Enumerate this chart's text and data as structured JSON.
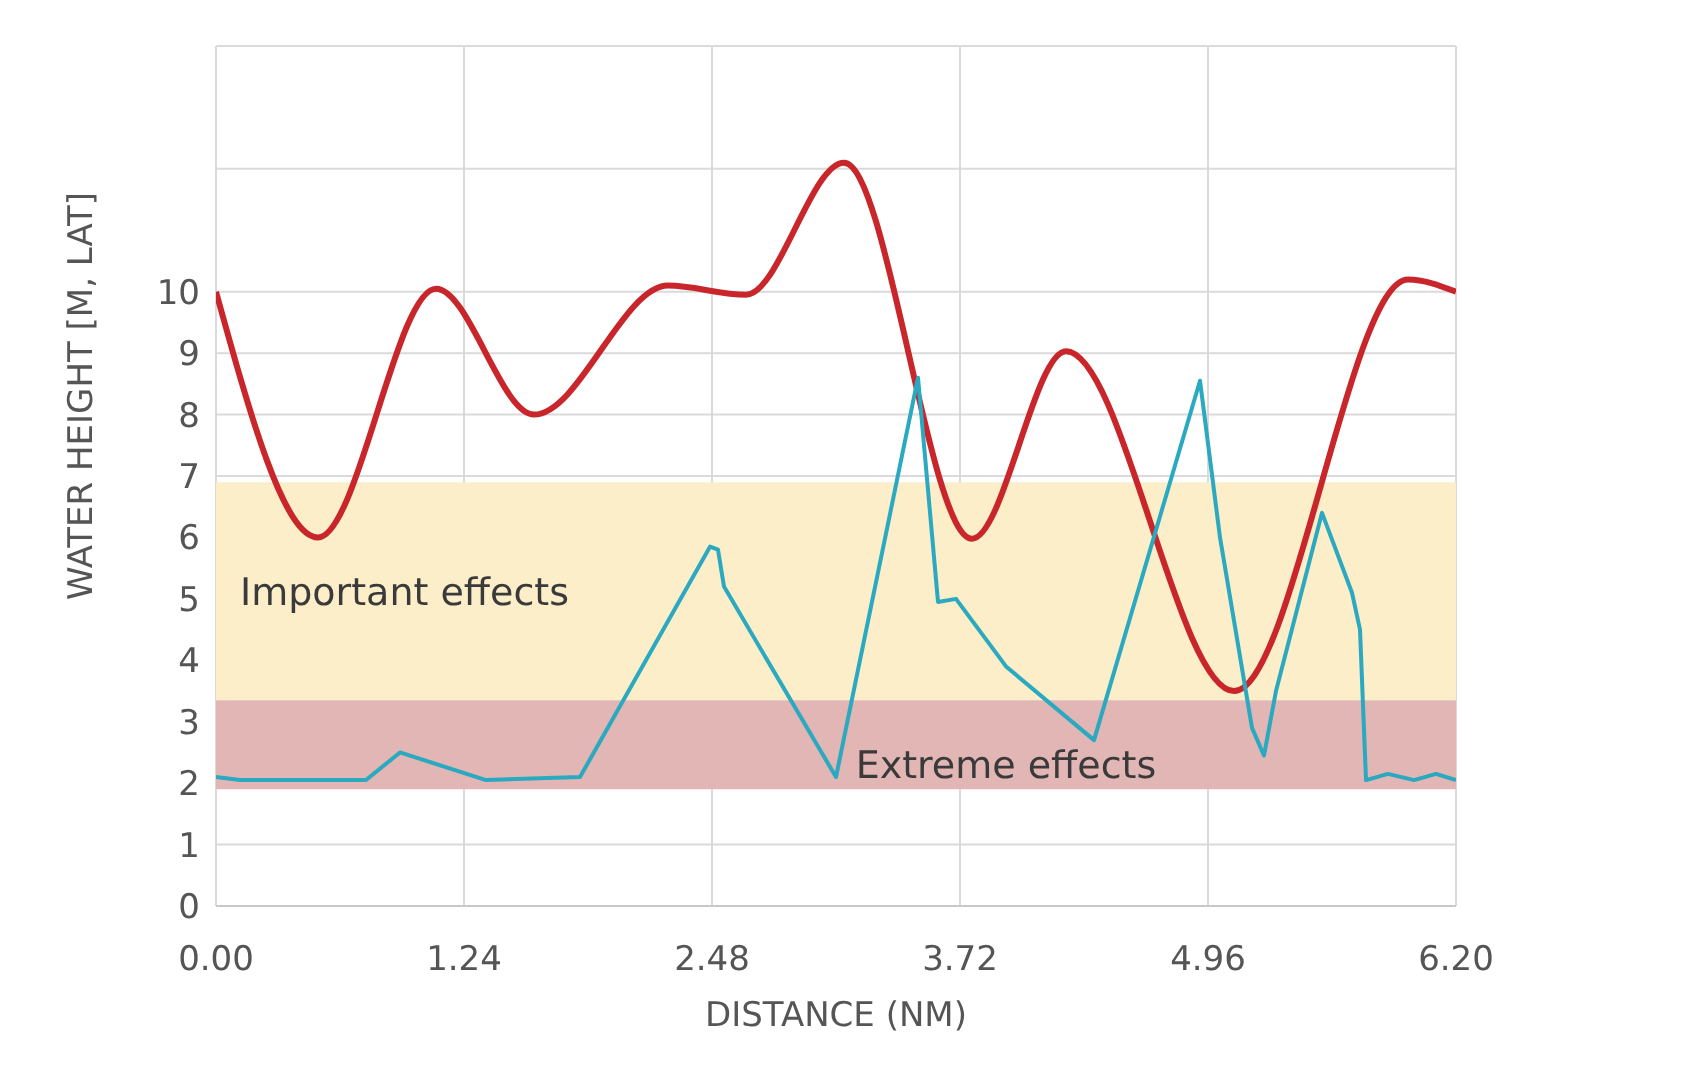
{
  "chart_data": {
    "type": "line",
    "xlabel": "DISTANCE (NM)",
    "ylabel": "WATER HEIGHT [M, LAT]",
    "xlim": [
      0,
      6.2
    ],
    "xticks": [
      {
        "value": 0,
        "label": "0.00"
      },
      {
        "value": 1.24,
        "label": "1.24"
      },
      {
        "value": 2.48,
        "label": "2.48"
      },
      {
        "value": 3.72,
        "label": "3.72"
      },
      {
        "value": 4.96,
        "label": "4.96"
      },
      {
        "value": 6.2,
        "label": "6.20"
      }
    ],
    "ylim": [
      0,
      14
    ],
    "yticks": [
      0,
      1,
      2,
      3,
      4,
      5,
      6,
      7,
      8,
      9,
      10,
      {
        "value": 12,
        "label": null
      },
      {
        "value": 14,
        "label": null
      }
    ],
    "grid": true,
    "marker": "none",
    "bands": [
      {
        "axis": "y",
        "from": 3.35,
        "to": 6.9,
        "label": "Important effects",
        "color": "#fbeec8"
      },
      {
        "axis": "y",
        "from": 1.9,
        "to": 3.35,
        "label": "Extreme effects",
        "color": "#e2b6b4"
      }
    ],
    "series": [
      {
        "color": "#c8262b",
        "x": [
          0,
          0.51,
          1.1,
          1.59,
          2.26,
          2.65,
          3.14,
          3.78,
          4.25,
          5.09,
          5.96,
          6.2
        ],
        "values": [
          10,
          6,
          10.05,
          8,
          10.1,
          9.95,
          12.1,
          5.98,
          9.03,
          3.5,
          10.2,
          10
        ]
      },
      {
        "color": "#2aa9c0",
        "x": [
          0,
          0.12,
          0.75,
          0.92,
          1.35,
          1.82,
          2.47,
          2.51,
          2.54,
          3.1,
          3.51,
          3.61,
          3.7,
          3.95,
          4.39,
          4.92,
          5.02,
          5.18,
          5.24,
          5.3,
          5.53,
          5.68,
          5.72,
          5.75,
          5.86,
          5.99,
          6.1,
          6.2
        ],
        "values": [
          2.1,
          2.05,
          2.05,
          2.5,
          2.05,
          2.1,
          5.85,
          5.8,
          5.2,
          2.1,
          8.6,
          4.95,
          5,
          3.9,
          2.7,
          8.55,
          6,
          2.9,
          2.45,
          3.5,
          6.4,
          5.1,
          4.5,
          2.05,
          2.15,
          2.05,
          2.15,
          2.05
        ]
      }
    ]
  }
}
